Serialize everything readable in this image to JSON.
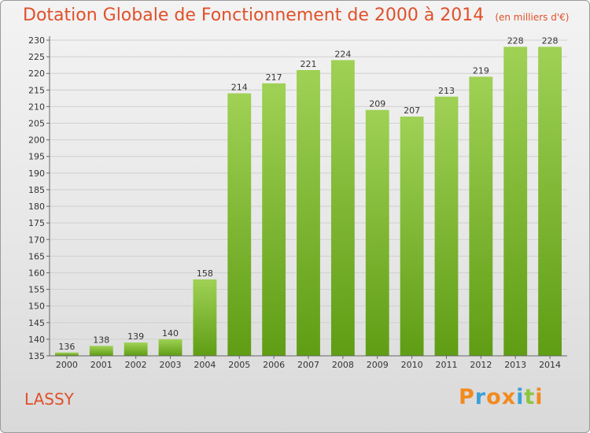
{
  "header": {
    "title": "Dotation Globale de Fonctionnement de 2000 à 2014",
    "subtitle": "(en milliers d'€)"
  },
  "footer": {
    "commune": "LASSY",
    "logo_letters": [
      "P",
      "r",
      "o",
      "x",
      "i",
      "t",
      "i"
    ],
    "logo_colors": [
      "#f28a1e",
      "#3aa0da",
      "#f28a1e",
      "#f28a1e",
      "#3aa0da",
      "#8cc63f",
      "#f28a1e"
    ]
  },
  "colors": {
    "bar_top": "#9fd155",
    "bar_bottom": "#5f9d14",
    "title": "#e0502a",
    "grid": "#d0d0d0"
  },
  "chart_data": {
    "type": "bar",
    "title": "Dotation Globale de Fonctionnement de 2000 à 2014",
    "subtitle": "(en milliers d'€)",
    "categories": [
      "2000",
      "2001",
      "2002",
      "2003",
      "2004",
      "2005",
      "2006",
      "2007",
      "2008",
      "2009",
      "2010",
      "2011",
      "2012",
      "2013",
      "2014"
    ],
    "values": [
      136,
      138,
      139,
      140,
      158,
      214,
      217,
      221,
      224,
      209,
      207,
      213,
      219,
      228,
      228
    ],
    "ylim": [
      135,
      230
    ],
    "ytick_step": 5,
    "grid": true,
    "data_labels": true
  }
}
